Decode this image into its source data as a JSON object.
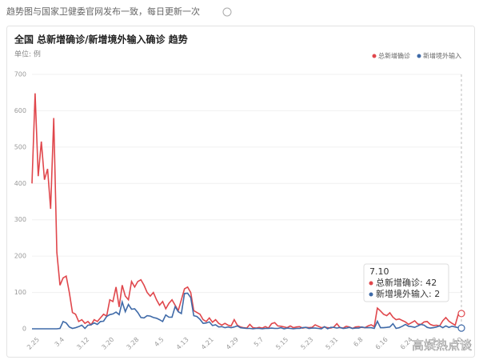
{
  "header": {
    "note": "趋势图与国家卫健委官网发布一致，每日更新一次"
  },
  "chart_data": {
    "type": "line",
    "title": "全国 总新增确诊/新增境外输入确诊 趋势",
    "unit": "单位: 例",
    "categories": [
      null,
      null,
      "2.25",
      null,
      null,
      null,
      null,
      null,
      null,
      null,
      "3.4",
      null,
      null,
      null,
      null,
      null,
      null,
      null,
      "3.12",
      null,
      null,
      null,
      null,
      null,
      null,
      null,
      "3.20",
      null,
      null,
      null,
      null,
      null,
      null,
      null,
      "3.28",
      null,
      null,
      null,
      null,
      null,
      null,
      null,
      "4.5",
      null,
      null,
      null,
      null,
      null,
      null,
      null,
      "4.13",
      null,
      null,
      null,
      null,
      null,
      null,
      null,
      "4.21",
      null,
      null,
      null,
      null,
      null,
      null,
      null,
      "4.29",
      null,
      null,
      null,
      null,
      null,
      null,
      null,
      "5.7",
      null,
      null,
      null,
      null,
      null,
      null,
      null,
      "5.15",
      null,
      null,
      null,
      null,
      null,
      null,
      null,
      "5.23",
      null,
      null,
      null,
      null,
      null,
      null,
      null,
      "5.31",
      null,
      null,
      null,
      null,
      null,
      null,
      null,
      "6.8",
      null,
      null,
      null,
      null,
      null,
      null,
      null,
      "6.16",
      null,
      null,
      null,
      null,
      null,
      null,
      null,
      "6.24",
      null,
      null,
      null,
      null,
      null,
      null,
      null,
      "7.2",
      null,
      null,
      null,
      null,
      null,
      null,
      null,
      "7.10"
    ],
    "series": [
      {
        "name": "总新增确诊",
        "color": "#e0474c",
        "values": [
          400,
          648,
          420,
          515,
          410,
          440,
          330,
          580,
          210,
          120,
          140,
          145,
          100,
          45,
          40,
          20,
          25,
          15,
          20,
          11,
          25,
          20,
          30,
          40,
          35,
          80,
          75,
          115,
          60,
          120,
          90,
          80,
          130,
          115,
          130,
          135,
          120,
          100,
          90,
          100,
          80,
          65,
          75,
          55,
          70,
          80,
          65,
          50,
          80,
          110,
          115,
          100,
          50,
          45,
          40,
          25,
          20,
          30,
          18,
          25,
          15,
          10,
          15,
          10,
          8,
          25,
          10,
          5,
          3,
          2,
          12,
          3,
          2,
          4,
          2,
          6,
          2,
          14,
          17,
          8,
          7,
          5,
          3,
          8,
          3,
          5,
          6,
          2,
          4,
          3,
          4,
          11,
          7,
          3,
          5,
          3,
          2,
          5,
          14,
          3,
          2,
          7,
          5,
          1,
          5,
          6,
          4,
          3,
          8,
          11,
          6,
          57,
          49,
          40,
          36,
          44,
          32,
          25,
          27,
          23,
          19,
          12,
          17,
          22,
          13,
          12,
          19,
          20,
          12,
          9,
          10,
          8,
          22,
          31,
          21,
          15,
          10,
          40,
          42
        ]
      },
      {
        "name": "新增境外输入",
        "color": "#3f6aa8",
        "values": [
          0,
          0,
          0,
          0,
          0,
          0,
          0,
          0,
          0,
          1,
          20,
          16,
          5,
          1,
          3,
          6,
          10,
          1,
          10,
          11,
          16,
          12,
          20,
          21,
          34,
          39,
          41,
          46,
          39,
          74,
          47,
          67,
          54,
          55,
          45,
          31,
          30,
          36,
          35,
          31,
          29,
          25,
          20,
          38,
          32,
          32,
          61,
          47,
          42,
          97,
          98,
          86,
          36,
          34,
          26,
          15,
          16,
          19,
          9,
          11,
          5,
          6,
          3,
          5,
          3,
          5,
          8,
          3,
          2,
          1,
          1,
          0,
          1,
          1,
          0,
          1,
          1,
          2,
          1,
          1,
          3,
          0,
          2,
          1,
          0,
          1,
          1,
          3,
          4,
          1,
          2,
          2,
          1,
          0,
          6,
          0,
          4,
          4,
          2,
          4,
          1,
          2,
          4,
          1,
          2,
          2,
          5,
          3,
          3,
          3,
          1,
          21,
          3,
          3,
          4,
          5,
          14,
          1,
          3,
          7,
          12,
          7,
          6,
          4,
          8,
          12,
          10,
          4,
          2,
          3,
          5,
          8,
          3,
          8,
          4,
          7,
          5,
          3,
          2
        ]
      }
    ],
    "ylim": [
      0,
      700
    ],
    "yticks": [
      0,
      100,
      200,
      300,
      400,
      500,
      600,
      700
    ],
    "grid": true,
    "legend": "top-right",
    "tooltip": {
      "title": "7.10",
      "lines": [
        "总新增确诊: 42",
        "新增境外输入: 2"
      ]
    },
    "watermark": "高娱热点谈"
  }
}
